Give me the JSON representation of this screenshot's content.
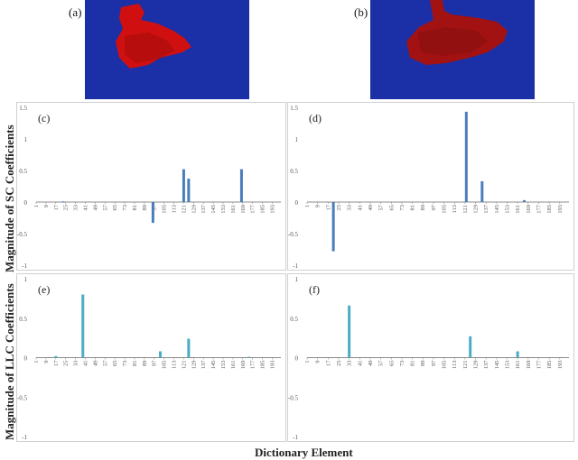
{
  "images": [
    {
      "label": "(a)"
    },
    {
      "label": "(b)"
    }
  ],
  "y_axis_label_top": "Magnitude of SC Coefficients",
  "y_axis_label_bottom": "Magnitude of LLC Coefficients",
  "x_axis_label": "Dictionary Element",
  "colors": {
    "sc_bar": "#4a7ebb",
    "llc_bar": "#4bacc6",
    "thumb_bg": "#1b2fa6",
    "thumb_fg": "#d01010"
  },
  "chart_data": [
    {
      "panel": "(c)",
      "type": "bar",
      "ylim": [
        -1,
        1.5
      ],
      "yticks": [
        "-1",
        "-0.5",
        "0",
        "0.5",
        "1",
        "1.5"
      ],
      "xticks": [
        "1",
        "9",
        "17",
        "25",
        "33",
        "41",
        "49",
        "57",
        "65",
        "73",
        "81",
        "89",
        "97",
        "105",
        "113",
        "121",
        "129",
        "137",
        "145",
        "153",
        "161",
        "169",
        "177",
        "185",
        "193"
      ],
      "x": [
        23,
        96,
        121,
        125,
        168
      ],
      "values": [
        0.01,
        -0.33,
        0.52,
        0.37,
        0.52
      ]
    },
    {
      "panel": "(d)",
      "type": "bar",
      "ylim": [
        -1,
        1.5
      ],
      "yticks": [
        "-1",
        "-0.5",
        "0",
        "0.5",
        "1",
        "1.5"
      ],
      "xticks": [
        "1",
        "9",
        "17",
        "25",
        "33",
        "41",
        "49",
        "57",
        "65",
        "73",
        "81",
        "89",
        "97",
        "105",
        "113",
        "121",
        "129",
        "137",
        "145",
        "153",
        "161",
        "169",
        "177",
        "185",
        "193"
      ],
      "x": [
        21,
        122,
        134,
        166
      ],
      "values": [
        -0.78,
        1.43,
        0.33,
        0.03
      ]
    },
    {
      "panel": "(e)",
      "type": "bar",
      "ylim": [
        -1,
        1
      ],
      "yticks": [
        "-1",
        "-0.5",
        "0",
        "0.5",
        "1"
      ],
      "xticks": [
        "1",
        "9",
        "17",
        "25",
        "33",
        "41",
        "49",
        "57",
        "65",
        "73",
        "81",
        "89",
        "97",
        "105",
        "113",
        "121",
        "129",
        "137",
        "145",
        "153",
        "161",
        "169",
        "177",
        "185",
        "193"
      ],
      "x": [
        17,
        39,
        102,
        125,
        174
      ],
      "values": [
        0.02,
        0.8,
        0.08,
        0.24,
        0.01
      ]
    },
    {
      "panel": "(f)",
      "type": "bar",
      "ylim": [
        -1,
        1
      ],
      "yticks": [
        "-1",
        "-0.5",
        "0",
        "0.5",
        "1"
      ],
      "xticks": [
        "1",
        "9",
        "17",
        "25",
        "33",
        "41",
        "49",
        "57",
        "65",
        "73",
        "81",
        "89",
        "97",
        "105",
        "113",
        "121",
        "129",
        "137",
        "145",
        "153",
        "161",
        "169",
        "177",
        "185",
        "193"
      ],
      "x": [
        33,
        125,
        161
      ],
      "values": [
        0.66,
        0.27,
        0.08
      ]
    }
  ]
}
